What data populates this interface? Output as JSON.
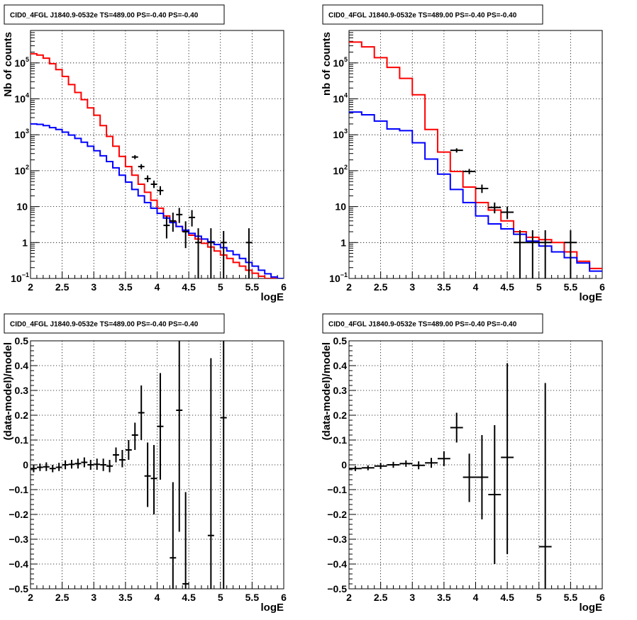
{
  "panels": [
    {
      "id": "top-left",
      "title": "CID0_4FGL J1840.9-0532e TS=489.00 PS=-0.40 PS=-0.40",
      "xlabel": "logE",
      "ylabel": "Nb of counts",
      "chart_data": {
        "type": "line",
        "xlim": [
          2,
          6
        ],
        "ylim": [
          0.1,
          800000
        ],
        "yscale": "log",
        "grid": true,
        "xticks": [
          "2",
          "2.5",
          "3",
          "3.5",
          "4",
          "4.5",
          "5",
          "5.5",
          "6"
        ],
        "yticks": [
          {
            "value": 0.1,
            "base": "10",
            "exp": "−1"
          },
          {
            "value": 1,
            "base": "1",
            "exp": ""
          },
          {
            "value": 10,
            "base": "10",
            "exp": ""
          },
          {
            "value": 100,
            "base": "10",
            "exp": "2"
          },
          {
            "value": 1000,
            "base": "10",
            "exp": "3"
          },
          {
            "value": 10000,
            "base": "10",
            "exp": "4"
          },
          {
            "value": 100000,
            "base": "10",
            "exp": "5"
          }
        ],
        "bin_edges": [
          2.0,
          2.1,
          2.2,
          2.3,
          2.4,
          2.5,
          2.6,
          2.7,
          2.8,
          2.9,
          3.0,
          3.1,
          3.2,
          3.3,
          3.4,
          3.5,
          3.6,
          3.7,
          3.8,
          3.9,
          4.0,
          4.1,
          4.2,
          4.3,
          4.4,
          4.5,
          4.6,
          4.7,
          4.8,
          4.9,
          5.0,
          5.1,
          5.2,
          5.3,
          5.4,
          5.5,
          5.6,
          5.7,
          5.8,
          5.9,
          6.0
        ],
        "series": [
          {
            "color": "#ff0000",
            "values": [
              180000,
              165000,
              135000,
              95000,
              65000,
              42000,
              25000,
              15000,
              9500,
              5600,
              3500,
              1800,
              900,
              480,
              250,
              130,
              75,
              42,
              25,
              15,
              9.0,
              5.5,
              3.8,
              2.8,
              2.1,
              1.6,
              1.25,
              0.95,
              0.75,
              0.58,
              0.45,
              0.36,
              0.28,
              0.22,
              0.17,
              0.14,
              0.115,
              0.1,
              0.09,
              0.08
            ]
          },
          {
            "color": "#0000ff",
            "values": [
              2000,
              1950,
              1800,
              1580,
              1400,
              1180,
              980,
              790,
              620,
              480,
              360,
              260,
              180,
              120,
              75,
              48,
              30,
              20,
              13,
              9.0,
              6.5,
              4.8,
              3.6,
              2.8,
              2.2,
              1.8,
              1.5,
              1.25,
              1.05,
              0.88,
              0.72,
              0.58,
              0.46,
              0.36,
              0.28,
              0.22,
              0.17,
              0.135,
              0.11,
              0.09
            ]
          }
        ],
        "data_points": [
          {
            "x": 3.65,
            "y": 240,
            "xerr": 0.05,
            "ylo": 210,
            "yhi": 270
          },
          {
            "x": 3.75,
            "y": 130,
            "xerr": 0.05,
            "ylo": 110,
            "yhi": 152
          },
          {
            "x": 3.85,
            "y": 60,
            "xerr": 0.05,
            "ylo": 48,
            "yhi": 74
          },
          {
            "x": 3.95,
            "y": 42,
            "xerr": 0.05,
            "ylo": 33,
            "yhi": 53
          },
          {
            "x": 4.05,
            "y": 28,
            "xerr": 0.05,
            "ylo": 21,
            "yhi": 37
          },
          {
            "x": 4.15,
            "y": 3.0,
            "xerr": 0.05,
            "ylo": 1.3,
            "yhi": 5.4
          },
          {
            "x": 4.25,
            "y": 4.0,
            "xerr": 0.05,
            "ylo": 2.0,
            "yhi": 6.8
          },
          {
            "x": 4.35,
            "y": 6.0,
            "xerr": 0.05,
            "ylo": 3.5,
            "yhi": 9.2
          },
          {
            "x": 4.45,
            "y": 2.0,
            "xerr": 0.05,
            "ylo": 0.7,
            "yhi": 3.9
          },
          {
            "x": 4.55,
            "y": 5.0,
            "xerr": 0.05,
            "ylo": 2.8,
            "yhi": 8.0
          },
          {
            "x": 4.65,
            "y": 1.0,
            "xerr": 0.05,
            "ylo": 0.1,
            "yhi": 2.5
          },
          {
            "x": 4.85,
            "y": 1.0,
            "xerr": 0.05,
            "ylo": 0.1,
            "yhi": 2.5
          },
          {
            "x": 5.05,
            "y": 1.0,
            "xerr": 0.05,
            "ylo": 0.1,
            "yhi": 2.1
          },
          {
            "x": 5.45,
            "y": 1.0,
            "xerr": 0.05,
            "ylo": 0.1,
            "yhi": 2.5
          }
        ]
      }
    },
    {
      "id": "top-right",
      "title": "CID0_4FGL J1840.9-0532e TS=489.00 PS=-0.40 PS=-0.40",
      "xlabel": "logE",
      "ylabel": "nb of counts",
      "chart_data": {
        "type": "line",
        "xlim": [
          2,
          6
        ],
        "ylim": [
          0.1,
          800000
        ],
        "yscale": "log",
        "grid": true,
        "xticks": [
          "2",
          "2.5",
          "3",
          "3.5",
          "4",
          "4.5",
          "5",
          "5.5",
          "6"
        ],
        "yticks": [
          {
            "value": 0.1,
            "base": "10",
            "exp": "−1"
          },
          {
            "value": 1,
            "base": "1",
            "exp": ""
          },
          {
            "value": 10,
            "base": "10",
            "exp": ""
          },
          {
            "value": 100,
            "base": "10",
            "exp": "2"
          },
          {
            "value": 1000,
            "base": "10",
            "exp": "3"
          },
          {
            "value": 10000,
            "base": "10",
            "exp": "4"
          },
          {
            "value": 100000,
            "base": "10",
            "exp": "5"
          }
        ],
        "bin_edges": [
          2.0,
          2.2,
          2.4,
          2.6,
          2.8,
          3.0,
          3.2,
          3.4,
          3.6,
          3.8,
          4.0,
          4.2,
          4.4,
          4.6,
          4.8,
          5.0,
          5.2,
          5.4,
          5.6,
          5.8,
          6.0
        ],
        "series": [
          {
            "color": "#ff0000",
            "values": [
              380000,
              280000,
              140000,
              75000,
              37000,
              13000,
              1400,
              330,
              95,
              35,
              13,
              8.0,
              4.0,
              2.0,
              1.4,
              1.2,
              1.0,
              0.55,
              0.3,
              0.19
            ]
          },
          {
            "color": "#0000ff",
            "values": [
              4300,
              3600,
              2400,
              1450,
              1300,
              600,
              210,
              80,
              30,
              13,
              5.5,
              3.3,
              2.4,
              1.7,
              1.1,
              0.8,
              0.55,
              0.38,
              0.27,
              0.16
            ]
          }
        ],
        "data_points": [
          {
            "x": 3.7,
            "y": 370,
            "xerr": 0.1,
            "ylo": 320,
            "yhi": 420
          },
          {
            "x": 3.9,
            "y": 95,
            "xerr": 0.1,
            "ylo": 80,
            "yhi": 112
          },
          {
            "x": 4.1,
            "y": 32,
            "xerr": 0.1,
            "ylo": 24,
            "yhi": 41
          },
          {
            "x": 4.3,
            "y": 9.5,
            "xerr": 0.1,
            "ylo": 6.5,
            "yhi": 13
          },
          {
            "x": 4.5,
            "y": 7.0,
            "xerr": 0.1,
            "ylo": 4.5,
            "yhi": 10
          },
          {
            "x": 4.7,
            "y": 1.0,
            "xerr": 0.1,
            "ylo": 0.1,
            "yhi": 2.2
          },
          {
            "x": 4.9,
            "y": 1.0,
            "xerr": 0.1,
            "ylo": 0.1,
            "yhi": 2.2
          },
          {
            "x": 5.1,
            "y": 1.0,
            "xerr": 0.1,
            "ylo": 0.1,
            "yhi": 2.2
          },
          {
            "x": 5.5,
            "y": 1.0,
            "xerr": 0.1,
            "ylo": 0.1,
            "yhi": 2.2
          }
        ]
      }
    },
    {
      "id": "bottom-left",
      "title": "CID0_4FGL J1840.9-0532e TS=489.00 PS=-0.40 PS=-0.40",
      "xlabel": "logE",
      "ylabel": "(data-model)/model",
      "chart_data": {
        "type": "scatter",
        "xlim": [
          2,
          6
        ],
        "ylim": [
          -0.5,
          0.5
        ],
        "grid": true,
        "xticks": [
          "2",
          "2.5",
          "3",
          "3.5",
          "4",
          "4.5",
          "5",
          "5.5",
          "6"
        ],
        "yticks": [
          "−0.5",
          "−0.4",
          "−0.3",
          "−0.2",
          "−0.1",
          "0",
          "0.1",
          "0.2",
          "0.3",
          "0.4",
          "0.5"
        ],
        "data_points": [
          {
            "x": 2.05,
            "y": -0.015,
            "xerr": 0.05,
            "ylo": -0.03,
            "yhi": 0.0
          },
          {
            "x": 2.15,
            "y": -0.01,
            "xerr": 0.05,
            "ylo": -0.025,
            "yhi": 0.005
          },
          {
            "x": 2.25,
            "y": -0.008,
            "xerr": 0.05,
            "ylo": -0.025,
            "yhi": 0.01
          },
          {
            "x": 2.35,
            "y": -0.015,
            "xerr": 0.05,
            "ylo": -0.03,
            "yhi": 0.0
          },
          {
            "x": 2.45,
            "y": -0.01,
            "xerr": 0.05,
            "ylo": -0.025,
            "yhi": 0.008
          },
          {
            "x": 2.55,
            "y": 0.0,
            "xerr": 0.05,
            "ylo": -0.018,
            "yhi": 0.018
          },
          {
            "x": 2.65,
            "y": 0.002,
            "xerr": 0.05,
            "ylo": -0.015,
            "yhi": 0.02
          },
          {
            "x": 2.75,
            "y": 0.005,
            "xerr": 0.05,
            "ylo": -0.015,
            "yhi": 0.025
          },
          {
            "x": 2.85,
            "y": 0.01,
            "xerr": 0.05,
            "ylo": -0.01,
            "yhi": 0.03
          },
          {
            "x": 2.95,
            "y": 0.0,
            "xerr": 0.05,
            "ylo": -0.02,
            "yhi": 0.02
          },
          {
            "x": 3.05,
            "y": 0.002,
            "xerr": 0.05,
            "ylo": -0.02,
            "yhi": 0.025
          },
          {
            "x": 3.15,
            "y": 0.0,
            "xerr": 0.05,
            "ylo": -0.025,
            "yhi": 0.025
          },
          {
            "x": 3.25,
            "y": -0.005,
            "xerr": 0.05,
            "ylo": -0.03,
            "yhi": 0.02
          },
          {
            "x": 3.35,
            "y": 0.04,
            "xerr": 0.05,
            "ylo": 0.01,
            "yhi": 0.07
          },
          {
            "x": 3.45,
            "y": 0.02,
            "xerr": 0.05,
            "ylo": -0.01,
            "yhi": 0.06
          },
          {
            "x": 3.55,
            "y": 0.06,
            "xerr": 0.05,
            "ylo": 0.02,
            "yhi": 0.1
          },
          {
            "x": 3.65,
            "y": 0.12,
            "xerr": 0.05,
            "ylo": 0.06,
            "yhi": 0.17
          },
          {
            "x": 3.75,
            "y": 0.21,
            "xerr": 0.05,
            "ylo": 0.1,
            "yhi": 0.32
          },
          {
            "x": 3.85,
            "y": -0.045,
            "xerr": 0.05,
            "ylo": -0.17,
            "yhi": 0.09
          },
          {
            "x": 3.95,
            "y": -0.055,
            "xerr": 0.05,
            "ylo": -0.2,
            "yhi": 0.08
          },
          {
            "x": 4.05,
            "y": 0.155,
            "xerr": 0.05,
            "ylo": -0.06,
            "yhi": 0.37
          },
          {
            "x": 4.25,
            "y": -0.375,
            "xerr": 0.05,
            "ylo": -0.5,
            "yhi": -0.07
          },
          {
            "x": 4.35,
            "y": 0.22,
            "xerr": 0.05,
            "ylo": -0.27,
            "yhi": 0.5
          },
          {
            "x": 4.45,
            "y": -0.48,
            "xerr": 0.05,
            "ylo": -0.5,
            "yhi": -0.11
          },
          {
            "x": 4.85,
            "y": -0.285,
            "xerr": 0.05,
            "ylo": -0.5,
            "yhi": 0.43
          },
          {
            "x": 5.05,
            "y": 0.19,
            "xerr": 0.05,
            "ylo": -0.5,
            "yhi": 0.5
          }
        ]
      }
    },
    {
      "id": "bottom-right",
      "title": "CID0_4FGL J1840.9-0532e TS=489.00 PS=-0.40 PS=-0.40",
      "xlabel": "logE",
      "ylabel": "(data-model)/model",
      "chart_data": {
        "type": "scatter",
        "xlim": [
          2,
          6
        ],
        "ylim": [
          -0.5,
          0.5
        ],
        "grid": true,
        "xticks": [
          "2",
          "2.5",
          "3",
          "3.5",
          "4",
          "4.5",
          "5",
          "5.5",
          "6"
        ],
        "yticks": [
          "−0.5",
          "−0.4",
          "−0.3",
          "−0.2",
          "−0.1",
          "0",
          "0.1",
          "0.2",
          "0.3",
          "0.4",
          "0.5"
        ],
        "data_points": [
          {
            "x": 2.1,
            "y": -0.015,
            "xerr": 0.1,
            "ylo": -0.025,
            "yhi": -0.005
          },
          {
            "x": 2.3,
            "y": -0.012,
            "xerr": 0.1,
            "ylo": -0.022,
            "yhi": -0.002
          },
          {
            "x": 2.5,
            "y": -0.005,
            "xerr": 0.1,
            "ylo": -0.017,
            "yhi": 0.007
          },
          {
            "x": 2.7,
            "y": 0.0,
            "xerr": 0.1,
            "ylo": -0.012,
            "yhi": 0.012
          },
          {
            "x": 2.9,
            "y": 0.005,
            "xerr": 0.1,
            "ylo": -0.008,
            "yhi": 0.018
          },
          {
            "x": 3.1,
            "y": -0.002,
            "xerr": 0.1,
            "ylo": -0.018,
            "yhi": 0.014
          },
          {
            "x": 3.3,
            "y": 0.008,
            "xerr": 0.1,
            "ylo": -0.012,
            "yhi": 0.028
          },
          {
            "x": 3.5,
            "y": 0.025,
            "xerr": 0.1,
            "ylo": -0.005,
            "yhi": 0.055
          },
          {
            "x": 3.7,
            "y": 0.15,
            "xerr": 0.1,
            "ylo": 0.09,
            "yhi": 0.21
          },
          {
            "x": 3.9,
            "y": -0.05,
            "xerr": 0.1,
            "ylo": -0.15,
            "yhi": 0.045
          },
          {
            "x": 4.1,
            "y": -0.05,
            "xerr": 0.1,
            "ylo": -0.22,
            "yhi": 0.12
          },
          {
            "x": 4.3,
            "y": -0.12,
            "xerr": 0.1,
            "ylo": -0.4,
            "yhi": 0.16
          },
          {
            "x": 4.5,
            "y": 0.03,
            "xerr": 0.1,
            "ylo": -0.36,
            "yhi": 0.41
          },
          {
            "x": 5.1,
            "y": -0.33,
            "xerr": 0.1,
            "ylo": -0.5,
            "yhi": 0.33
          }
        ]
      }
    }
  ]
}
